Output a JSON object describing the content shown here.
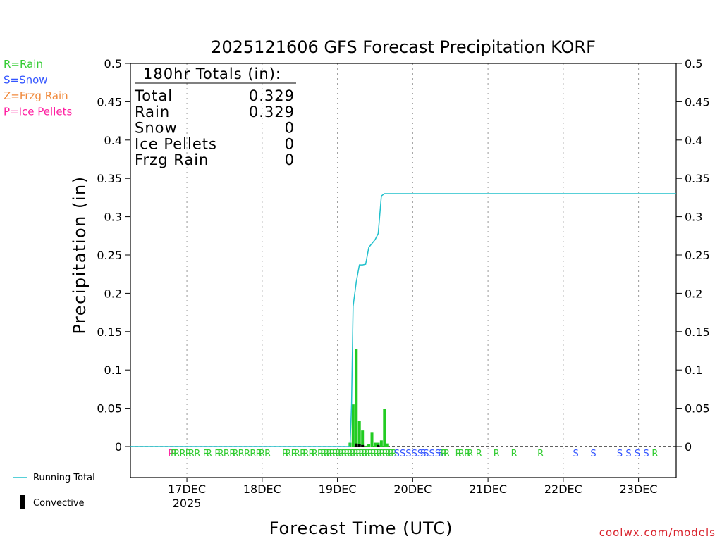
{
  "page": {
    "title": "2025121606 GFS Forecast Precipitation KORF",
    "watermark": "coolwx.com/models"
  },
  "legend_types": [
    {
      "label": "R=Rain",
      "color": "#33cc33"
    },
    {
      "label": "S=Snow",
      "color": "#3355ff"
    },
    {
      "label": "Z=Frzg Rain",
      "color": "#f08a3c"
    },
    {
      "label": "P=Ice Pellets",
      "color": "#ff1ea0"
    }
  ],
  "legend_bottom": {
    "running_total": "Running Total",
    "convective": "Convective"
  },
  "totals_box": {
    "header": "180hr Totals (in):",
    "rows": [
      {
        "label": "Total",
        "value": "0.329"
      },
      {
        "label": "Rain",
        "value": "0.329"
      },
      {
        "label": "Snow",
        "value": "0"
      },
      {
        "label": "Ice Pellets",
        "value": "0"
      },
      {
        "label": "Frzg Rain",
        "value": "0"
      }
    ]
  },
  "chart_data": {
    "type": "bar",
    "title": "2025121606 GFS Forecast Precipitation KORF",
    "xlabel": "Forecast Time (UTC)",
    "ylabel": "Precipitation (in)",
    "ylim": [
      -0.04,
      0.5
    ],
    "yticks": [
      0,
      0.05,
      0.1,
      0.15,
      0.2,
      0.25,
      0.3,
      0.35,
      0.4,
      0.45,
      0.5
    ],
    "ytick_labels": [
      "0",
      "0.05",
      "0.1",
      "0.15",
      "0.2",
      "0.25",
      "0.3",
      "0.35",
      "0.4",
      "0.45",
      "0.5"
    ],
    "xlim_hours": [
      6,
      180
    ],
    "x_ticks": [
      {
        "hour": 24,
        "label": "17DEC",
        "sublabel": "2025"
      },
      {
        "hour": 48,
        "label": "18DEC",
        "sublabel": ""
      },
      {
        "hour": 72,
        "label": "19DEC",
        "sublabel": ""
      },
      {
        "hour": 96,
        "label": "20DEC",
        "sublabel": ""
      },
      {
        "hour": 120,
        "label": "21DEC",
        "sublabel": ""
      },
      {
        "hour": 144,
        "label": "22DEC",
        "sublabel": ""
      },
      {
        "hour": 168,
        "label": "23DEC",
        "sublabel": ""
      }
    ],
    "grid": "vertical dotted at day boundaries",
    "precip_bars": [
      {
        "hour": 76,
        "value": 0.005
      },
      {
        "hour": 77,
        "value": 0.055
      },
      {
        "hour": 78,
        "value": 0.127
      },
      {
        "hour": 79,
        "value": 0.034
      },
      {
        "hour": 80,
        "value": 0.021
      },
      {
        "hour": 81,
        "value": 0.001
      },
      {
        "hour": 82,
        "value": 0.003
      },
      {
        "hour": 83,
        "value": 0.019
      },
      {
        "hour": 84,
        "value": 0.005
      },
      {
        "hour": 85,
        "value": 0.005
      },
      {
        "hour": 86,
        "value": 0.008
      },
      {
        "hour": 87,
        "value": 0.049
      },
      {
        "hour": 88,
        "value": 0.004
      }
    ],
    "convective_bars": [
      {
        "hour": 78,
        "value": 0.004
      },
      {
        "hour": 79,
        "value": 0.003
      },
      {
        "hour": 80,
        "value": 0.002
      },
      {
        "hour": 85,
        "value": 0.002
      }
    ],
    "running_total": [
      {
        "hour": 6,
        "value": 0
      },
      {
        "hour": 76,
        "value": 0
      },
      {
        "hour": 76.5,
        "value": 0.055
      },
      {
        "hour": 77,
        "value": 0.183
      },
      {
        "hour": 78,
        "value": 0.215
      },
      {
        "hour": 79,
        "value": 0.237
      },
      {
        "hour": 80,
        "value": 0.237
      },
      {
        "hour": 81,
        "value": 0.238
      },
      {
        "hour": 82,
        "value": 0.26
      },
      {
        "hour": 83,
        "value": 0.265
      },
      {
        "hour": 84,
        "value": 0.27
      },
      {
        "hour": 85,
        "value": 0.278
      },
      {
        "hour": 86,
        "value": 0.327
      },
      {
        "hour": 87,
        "value": 0.33
      },
      {
        "hour": 180,
        "value": 0.33
      }
    ],
    "precip_type_markers": [
      {
        "hour": 20,
        "type": "P"
      },
      {
        "hour": 21,
        "type": "R"
      },
      {
        "hour": 22,
        "type": "R"
      },
      {
        "hour": 24,
        "type": "R"
      },
      {
        "hour": 26,
        "type": "R"
      },
      {
        "hour": 27,
        "type": "R"
      },
      {
        "hour": 29,
        "type": "R"
      },
      {
        "hour": 32,
        "type": "R"
      },
      {
        "hour": 33,
        "type": "R"
      },
      {
        "hour": 36,
        "type": "R"
      },
      {
        "hour": 37,
        "type": "R"
      },
      {
        "hour": 39,
        "type": "R"
      },
      {
        "hour": 41,
        "type": "R"
      },
      {
        "hour": 42,
        "type": "R"
      },
      {
        "hour": 44,
        "type": "R"
      },
      {
        "hour": 46,
        "type": "R"
      },
      {
        "hour": 48,
        "type": "R"
      },
      {
        "hour": 50,
        "type": "R"
      },
      {
        "hour": 51,
        "type": "R"
      },
      {
        "hour": 53,
        "type": "R"
      },
      {
        "hour": 59,
        "type": "R"
      },
      {
        "hour": 60,
        "type": "R"
      },
      {
        "hour": 62,
        "type": "R"
      },
      {
        "hour": 63,
        "type": "R"
      },
      {
        "hour": 65,
        "type": "R"
      },
      {
        "hour": 66,
        "type": "R"
      },
      {
        "hour": 68,
        "type": "R"
      },
      {
        "hour": 69,
        "type": "R"
      },
      {
        "hour": 71,
        "type": "R"
      },
      {
        "hour": 72,
        "type": "R"
      },
      {
        "hour": 73,
        "type": "R"
      },
      {
        "hour": 74,
        "type": "R"
      },
      {
        "hour": 75,
        "type": "R"
      },
      {
        "hour": 76,
        "type": "R"
      },
      {
        "hour": 77,
        "type": "R"
      },
      {
        "hour": 78,
        "type": "R"
      },
      {
        "hour": 79,
        "type": "R"
      },
      {
        "hour": 80,
        "type": "R"
      },
      {
        "hour": 81,
        "type": "R"
      },
      {
        "hour": 82,
        "type": "R"
      },
      {
        "hour": 83,
        "type": "R"
      },
      {
        "hour": 84,
        "type": "R"
      },
      {
        "hour": 85,
        "type": "R"
      },
      {
        "hour": 86,
        "type": "R"
      },
      {
        "hour": 87,
        "type": "R"
      },
      {
        "hour": 88,
        "type": "R"
      },
      {
        "hour": 89,
        "type": "R"
      },
      {
        "hour": 90,
        "type": "R"
      },
      {
        "hour": 91,
        "type": "R"
      },
      {
        "hour": 92,
        "type": "R"
      },
      {
        "hour": 93,
        "type": "R"
      },
      {
        "hour": 94,
        "type": "R"
      },
      {
        "hour": 95,
        "type": "R"
      },
      {
        "hour": 96,
        "type": "R"
      },
      {
        "hour": 97,
        "type": "S"
      },
      {
        "hour": 99,
        "type": "S"
      },
      {
        "hour": 101,
        "type": "S"
      },
      {
        "hour": 103,
        "type": "S"
      },
      {
        "hour": 105,
        "type": "S"
      },
      {
        "hour": 106,
        "type": "S"
      },
      {
        "hour": 107,
        "type": "S"
      },
      {
        "hour": 109,
        "type": "S"
      },
      {
        "hour": 111,
        "type": "S"
      },
      {
        "hour": 112,
        "type": "S"
      },
      {
        "hour": 113,
        "type": "R"
      },
      {
        "hour": 114,
        "type": "R"
      },
      {
        "hour": 118,
        "type": "R"
      },
      {
        "hour": 119,
        "type": "R"
      },
      {
        "hour": 121,
        "type": "R"
      },
      {
        "hour": 122,
        "type": "R"
      },
      {
        "hour": 125,
        "type": "R"
      },
      {
        "hour": 131,
        "type": "R"
      },
      {
        "hour": 137,
        "type": "R"
      },
      {
        "hour": 146,
        "type": "R"
      },
      {
        "hour": 158,
        "type": "S"
      },
      {
        "hour": 164,
        "type": "S"
      },
      {
        "hour": 173,
        "type": "S"
      },
      {
        "hour": 176,
        "type": "S"
      },
      {
        "hour": 179,
        "type": "S"
      },
      {
        "hour": 182,
        "type": "S"
      },
      {
        "hour": 185,
        "type": "R"
      }
    ]
  },
  "colors": {
    "bars": "#22cc22",
    "convective": "#000000",
    "running_total": "#20c0cc",
    "grid": "#999999"
  }
}
